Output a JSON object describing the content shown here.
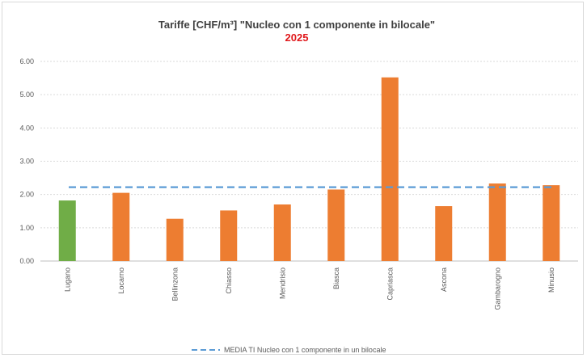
{
  "chart_data": {
    "type": "bar",
    "title": "Tariffe [CHF/m³] \"Nucleo con 1 componente in bilocale\"",
    "subtitle": "2025",
    "categories": [
      "Lugano",
      "Locarno",
      "Bellinzona",
      "Chiasso",
      "Mendrisio",
      "Biasca",
      "Capriasca",
      "Ascona",
      "Gambarogno",
      "Minusio"
    ],
    "values": [
      1.82,
      2.05,
      1.27,
      1.52,
      1.7,
      2.15,
      5.52,
      1.65,
      2.33,
      2.28
    ],
    "bar_colors": [
      "#70ad47",
      "#ed7d31",
      "#ed7d31",
      "#ed7d31",
      "#ed7d31",
      "#ed7d31",
      "#ed7d31",
      "#ed7d31",
      "#ed7d31",
      "#ed7d31"
    ],
    "ylim": [
      0,
      6
    ],
    "yticks": [
      "0.00",
      "1.00",
      "2.00",
      "3.00",
      "4.00",
      "5.00",
      "6.00"
    ],
    "grid": true,
    "xlabel": "",
    "ylabel": "",
    "reference_line": {
      "name": "MEDIA TI Nucleo con 1 componente in un bilocale",
      "value": 2.22,
      "color": "#5b9bd5",
      "style": "dashed"
    },
    "legend_position": "bottom"
  }
}
